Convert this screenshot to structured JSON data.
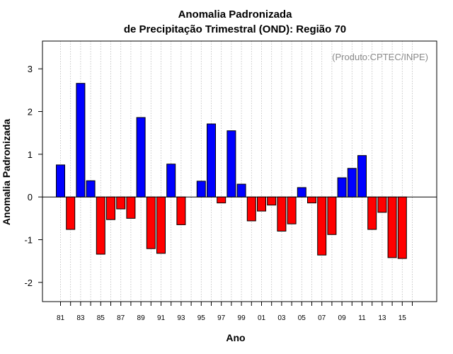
{
  "chart_data": {
    "type": "bar",
    "title_line1": "Anomalia Padronizada",
    "title_line2": "de Precipitação Trimestral (OND): Região 70",
    "xlabel": "Ano",
    "ylabel": "Anomalia Padronizada",
    "credit": "(Produto:CPTEC/INPE)",
    "ylim": [
      -2.45,
      3.65
    ],
    "yticks": [
      "-2",
      "-1",
      "0",
      "1",
      "2",
      "3"
    ],
    "x_tick_labels": [
      "81",
      "83",
      "85",
      "87",
      "89",
      "91",
      "93",
      "95",
      "97",
      "99",
      "01",
      "03",
      "05",
      "07",
      "09",
      "11",
      "13",
      "15"
    ],
    "categories": [
      "1981",
      "1982",
      "1983",
      "1984",
      "1985",
      "1986",
      "1987",
      "1988",
      "1989",
      "1990",
      "1991",
      "1992",
      "1993",
      "1994",
      "1995",
      "1996",
      "1997",
      "1998",
      "1999",
      "2000",
      "2001",
      "2002",
      "2003",
      "2004",
      "2005",
      "2006",
      "2007",
      "2008",
      "2009",
      "2010",
      "2011",
      "2012",
      "2013",
      "2014",
      "2015"
    ],
    "values": [
      0.75,
      -0.76,
      2.66,
      0.38,
      -1.34,
      -0.53,
      -0.28,
      -0.5,
      1.86,
      -1.21,
      -1.32,
      0.77,
      -0.65,
      null,
      0.37,
      1.71,
      -0.14,
      1.55,
      0.3,
      -0.56,
      -0.33,
      -0.19,
      -0.8,
      -0.63,
      0.22,
      -0.14,
      -1.36,
      -0.88,
      0.45,
      0.67,
      0.97,
      -0.76,
      -0.36,
      -1.42,
      -1.44
    ],
    "positive_color": "#0000ff",
    "negative_color": "#ff0000",
    "grid": "vertical dotted",
    "x_extra_gridlines": 1
  }
}
